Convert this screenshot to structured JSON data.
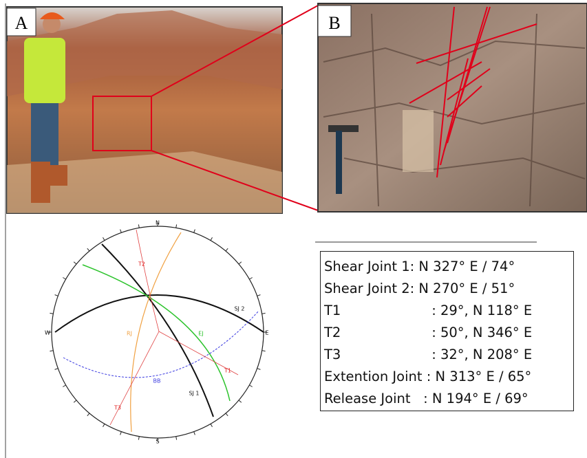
{
  "panels": [
    {
      "label": "A"
    },
    {
      "label": "B"
    }
  ],
  "stereonet": {
    "directions": {
      "north": "N",
      "south": "S",
      "east": "E",
      "west": "W"
    },
    "labels": {
      "t2": "T2",
      "rj": "RJ",
      "ej": "EJ",
      "sj2": "SJ 2",
      "sj1": "SJ 1",
      "t1": "T1",
      "t3": "T3",
      "bb": "BB"
    }
  },
  "joints_table": {
    "rows": [
      [
        "Shear Joint 1:",
        "N 327° E / 74°"
      ],
      [
        "Shear Joint 2:",
        "N 270° E / 51°"
      ],
      [
        "T1",
        ": 29°, N 118° E"
      ],
      [
        "T2",
        ": 50°, N 346° E"
      ],
      [
        "T3",
        ": 32°, N 208° E"
      ],
      [
        "Extention Joint :",
        "N 313° E / 65°"
      ],
      [
        "Release Joint   :",
        "N 194° E / 69°"
      ]
    ]
  }
}
